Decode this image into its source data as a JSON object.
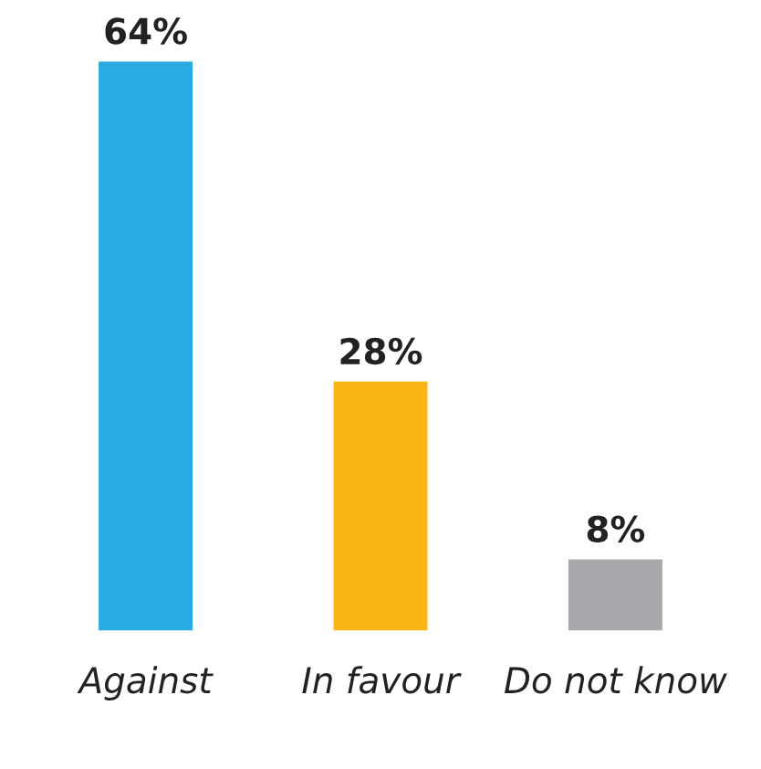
{
  "chart_data": {
    "type": "bar",
    "categories": [
      "Against",
      "In favour",
      "Do not know"
    ],
    "values": [
      64,
      28,
      8
    ],
    "colors": [
      "#29abe2",
      "#fbb615",
      "#a7a9ac"
    ],
    "value_labels": [
      "64%",
      "28%",
      "8%"
    ],
    "grid": false,
    "legend": false
  }
}
